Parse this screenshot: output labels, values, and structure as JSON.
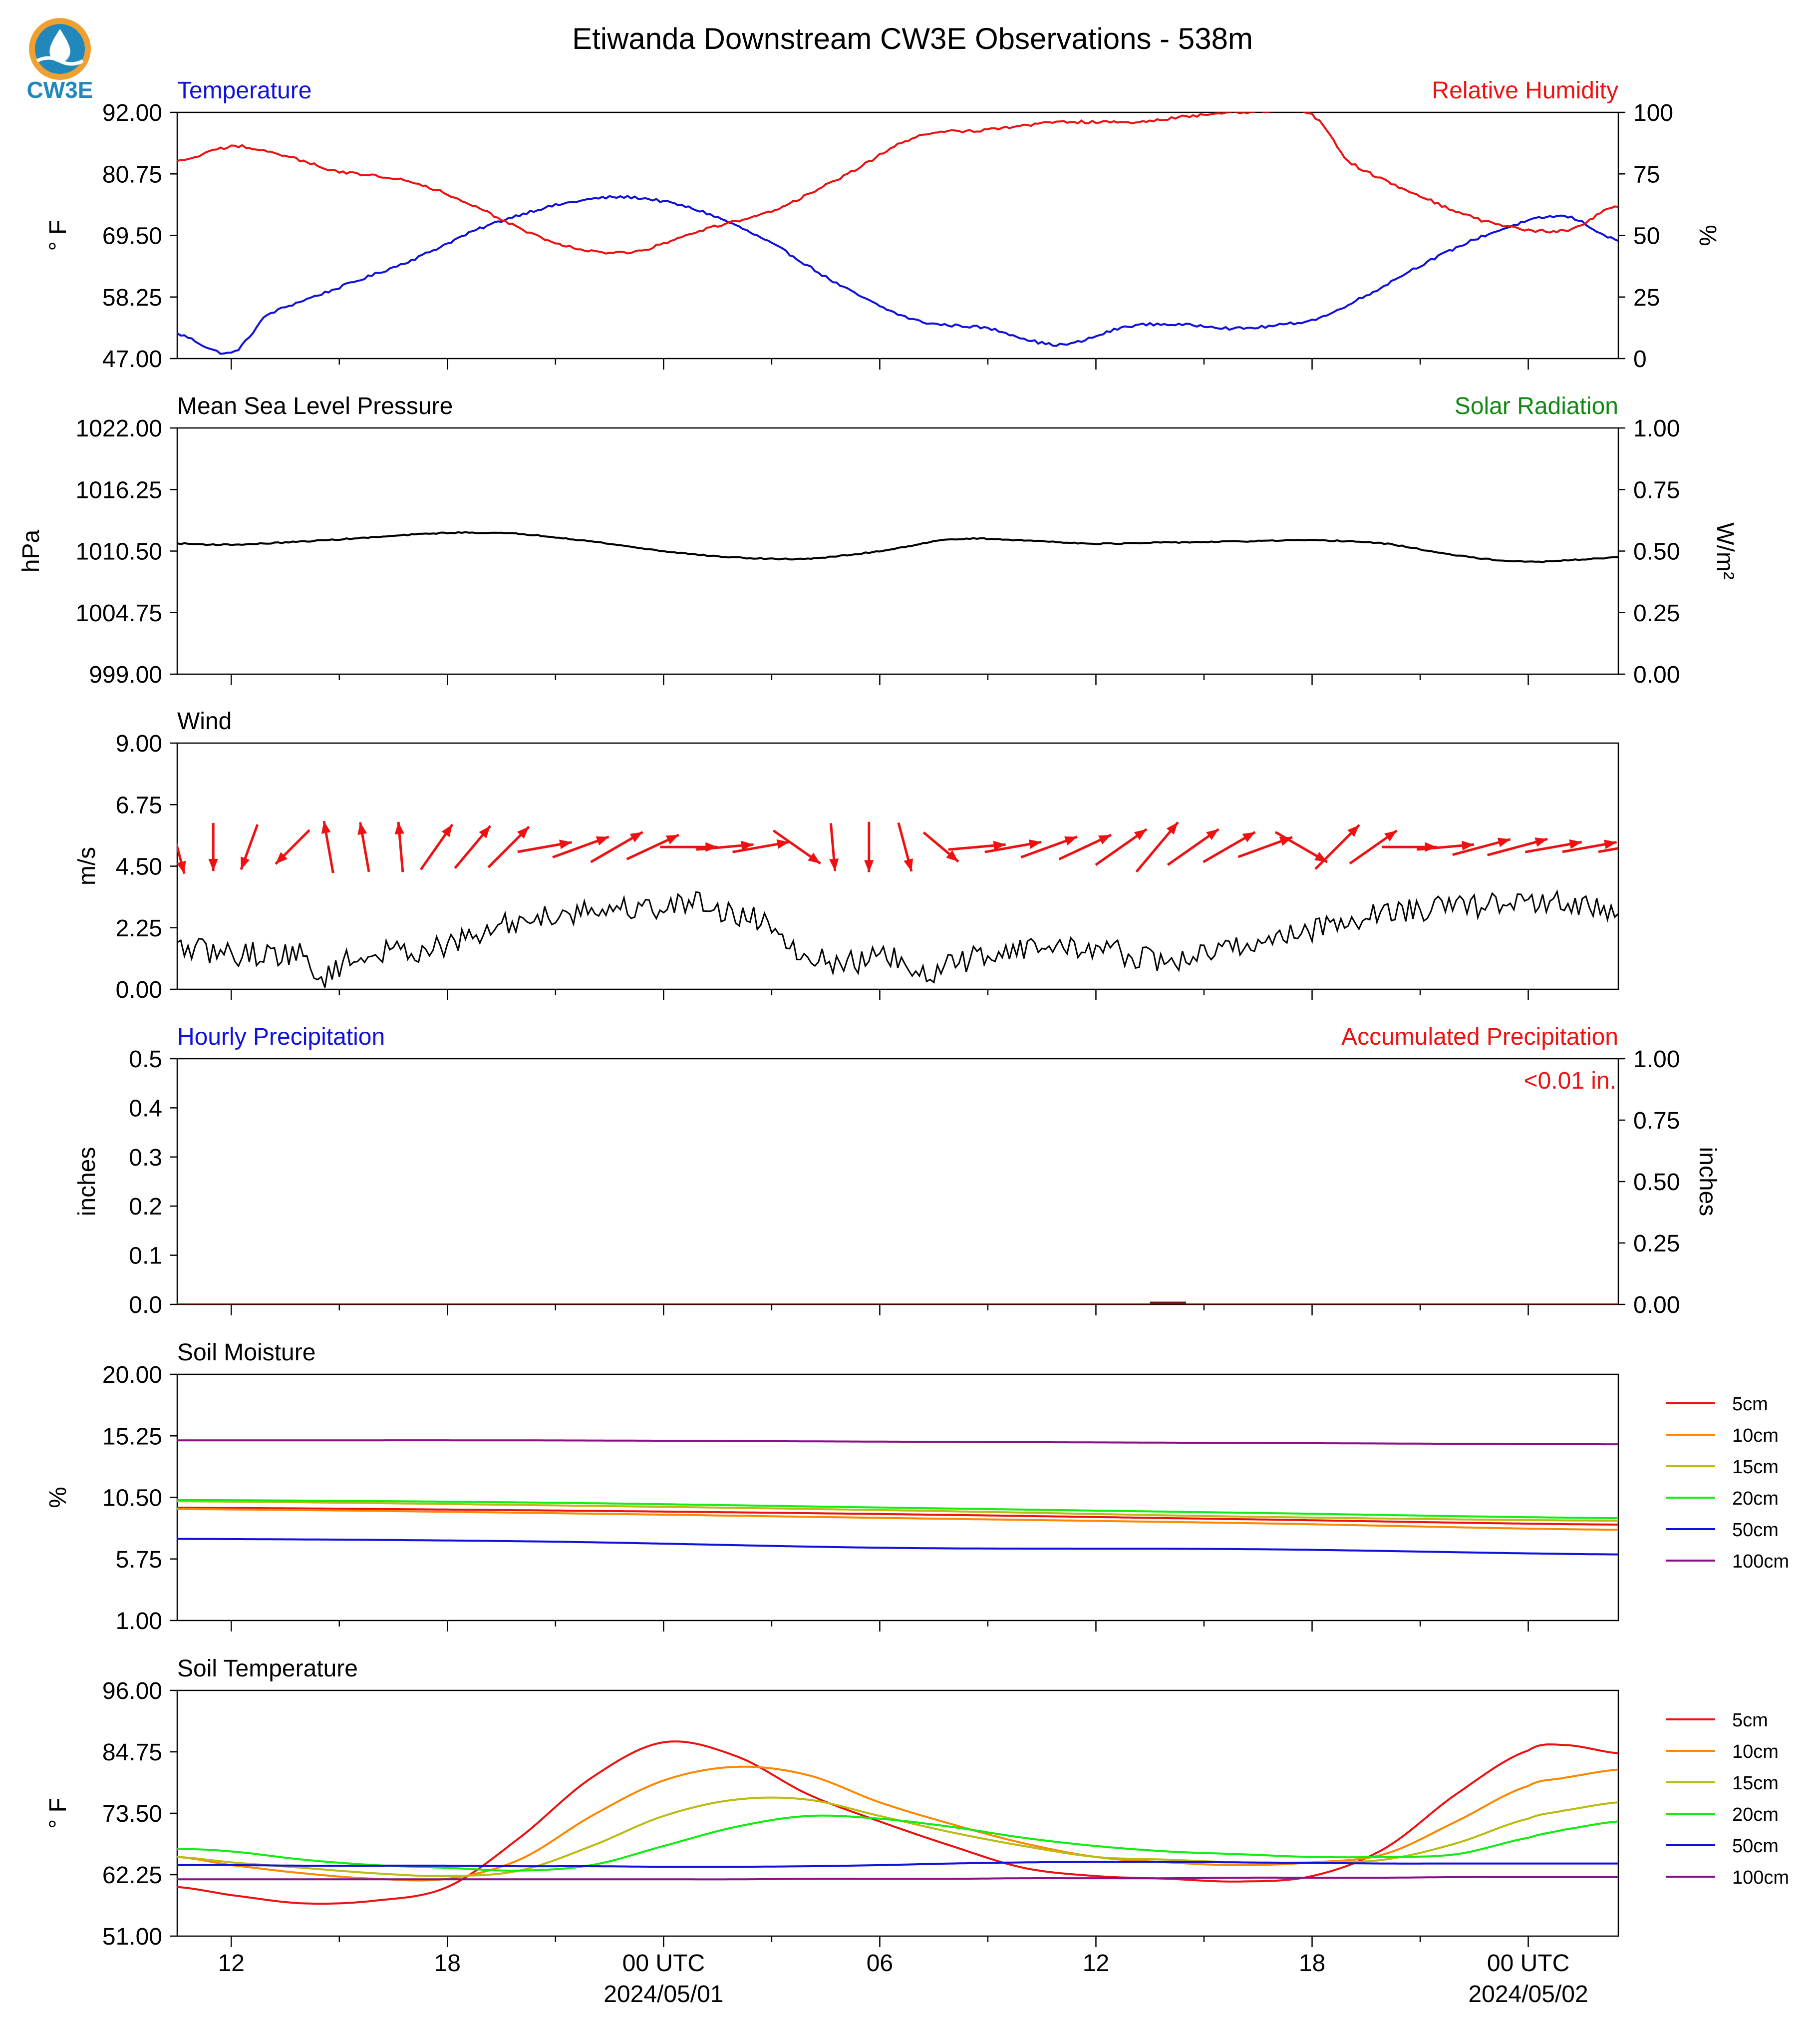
{
  "page": {
    "title": "Etiwanda Downstream CW3E Observations - 538m",
    "logo_text": "CW3E",
    "x_ticks": [
      {
        "label": "12",
        "sub": ""
      },
      {
        "label": "18",
        "sub": ""
      },
      {
        "label": "00 UTC",
        "sub": "2024/05/01"
      },
      {
        "label": "06",
        "sub": ""
      },
      {
        "label": "12",
        "sub": ""
      },
      {
        "label": "18",
        "sub": ""
      },
      {
        "label": "00 UTC",
        "sub": "2024/05/02"
      }
    ],
    "colors": {
      "blue": "#1111dd",
      "red": "#ee1111",
      "green": "#118811",
      "black": "#000000"
    }
  },
  "chart_data": [
    {
      "type": "line",
      "left_title": "Temperature",
      "right_title": "Relative Humidity",
      "ylabel": "° F",
      "ylabel_right": "%",
      "yticks": [
        "92.00",
        "80.75",
        "69.50",
        "58.25",
        "47.00"
      ],
      "yticks_right": [
        "100",
        "75",
        "50",
        "25",
        "0"
      ],
      "ylim": [
        47,
        92
      ],
      "ylim_right": [
        0,
        100
      ],
      "x_hours": [
        -1.5,
        0,
        1,
        3,
        5,
        7,
        9,
        11,
        13,
        15,
        17,
        19,
        21,
        23,
        25,
        27,
        28,
        30,
        31,
        33,
        35,
        37,
        38.5
      ],
      "series": [
        {
          "name": "Temperature",
          "color": "#1111dd",
          "axis": "left",
          "values": [
            51.5,
            48,
            55,
            60,
            65,
            71,
            75,
            76.5,
            74,
            68,
            60,
            54,
            52.5,
            49.5,
            53,
            53,
            52.5,
            54,
            57,
            64,
            70,
            73,
            68.5
          ]
        },
        {
          "name": "Relative Humidity",
          "color": "#ee1111",
          "axis": "right",
          "values": [
            80,
            86,
            84,
            76,
            72,
            60,
            47,
            43,
            52,
            60,
            74,
            90,
            93,
            96,
            96,
            99,
            100,
            99,
            80,
            66,
            55,
            52,
            62
          ]
        }
      ]
    },
    {
      "type": "line",
      "left_title": "Mean Sea Level Pressure",
      "right_title": "Solar Radiation",
      "ylabel": "hPa",
      "ylabel_right": "W/m²",
      "yticks": [
        "1022.00",
        "1016.25",
        "1010.50",
        "1004.75",
        "999.00"
      ],
      "yticks_right": [
        "1.00",
        "0.75",
        "0.50",
        "0.25",
        "0.00"
      ],
      "ylim": [
        999,
        1022
      ],
      "ylim_right": [
        0,
        1
      ],
      "x_hours": [
        -1.5,
        0,
        2,
        4,
        6,
        8,
        10,
        12,
        14,
        16,
        18,
        20,
        22,
        24,
        26,
        28,
        30,
        32,
        34,
        36,
        38.5
      ],
      "series": [
        {
          "name": "Mean Sea Level Pressure",
          "color": "#000000",
          "axis": "left",
          "values": [
            1011.2,
            1011.1,
            1011.4,
            1011.8,
            1012.2,
            1012.1,
            1011.4,
            1010.5,
            1009.9,
            1009.8,
            1010.5,
            1011.6,
            1011.5,
            1011.2,
            1011.3,
            1011.4,
            1011.5,
            1011.2,
            1010.1,
            1009.5,
            1009.9
          ]
        }
      ]
    },
    {
      "type": "line",
      "left_title": "Wind",
      "ylabel": "m/s",
      "yticks": [
        "9.00",
        "6.75",
        "4.50",
        "2.25",
        "0.00"
      ],
      "ylim": [
        0,
        9
      ],
      "x_hours": [
        -1.5,
        0,
        1,
        2,
        2.4,
        3,
        4,
        6,
        8,
        10,
        12,
        13,
        14,
        15,
        16,
        17,
        18.5,
        19,
        20,
        21,
        22,
        24,
        26,
        27,
        28,
        30,
        32,
        34,
        36,
        38.5
      ],
      "series": [
        {
          "name": "Wind Speed",
          "color": "#000000",
          "axis": "left",
          "values": [
            1.5,
            1.3,
            1.3,
            1.2,
            0.4,
            0.9,
            1.3,
            1.6,
            2.5,
            2.9,
            3.0,
            3.2,
            2.7,
            2.4,
            1.2,
            1.0,
            1.1,
            0.4,
            0.9,
            1.3,
            1.5,
            1.5,
            1.0,
            1.3,
            1.6,
            2.2,
            2.8,
            3.0,
            3.2,
            2.9
          ]
        }
      ],
      "wind_barbs": {
        "color": "#ee1111",
        "hours": [
          -1.5,
          -0.5,
          0.5,
          1.7,
          2.7,
          3.7,
          4.7,
          5.7,
          6.7,
          7.7,
          8.7,
          9.7,
          10.7,
          11.7,
          12.7,
          13.7,
          14.7,
          15.7,
          16.7,
          17.7,
          18.7,
          19.7,
          20.7,
          21.7,
          22.7,
          23.7,
          24.7,
          25.7,
          26.7,
          27.7,
          28.7,
          29.7,
          30.7,
          31.7,
          32.7,
          33.7,
          34.7,
          35.7,
          36.7,
          37.7,
          38.7
        ],
        "direction_deg": [
          345,
          0,
          20,
          45,
          170,
          170,
          175,
          215,
          220,
          225,
          260,
          250,
          240,
          245,
          270,
          265,
          260,
          305,
          355,
          0,
          345,
          310,
          265,
          260,
          250,
          245,
          235,
          220,
          235,
          240,
          250,
          300,
          225,
          235,
          270,
          265,
          255,
          255,
          260,
          260,
          260
        ],
        "speed_ms": [
          2.3,
          2.0,
          2.0,
          2.0,
          2.2,
          2.1,
          2.1,
          2.3,
          2.3,
          2.4,
          2.3,
          2.5,
          2.5,
          2.4,
          2.4,
          2.4,
          2.4,
          2.4,
          2.0,
          2.1,
          2.1,
          1.9,
          2.4,
          2.4,
          2.5,
          2.4,
          2.6,
          2.7,
          2.6,
          2.5,
          2.4,
          2.5,
          2.6,
          2.4,
          2.3,
          2.4,
          2.5,
          2.6,
          2.4,
          2.3,
          2.3
        ]
      }
    },
    {
      "type": "bar",
      "left_title": "Hourly Precipitation",
      "right_title": "Accumulated Precipitation",
      "annotation": "<0.01 in.",
      "ylabel": "inches",
      "ylabel_right": "inches",
      "yticks": [
        "0.5",
        "0.4",
        "0.3",
        "0.2",
        "0.1",
        "0.0"
      ],
      "yticks_right": [
        "1.00",
        "0.75",
        "0.50",
        "0.25",
        "0.00"
      ],
      "ylim": [
        0,
        0.5
      ],
      "ylim_right": [
        0,
        1
      ],
      "x_hours": [
        -1.5,
        38.5
      ],
      "series": [
        {
          "name": "Hourly Precipitation",
          "color": "#1111dd",
          "axis": "left",
          "values": [
            0,
            0
          ]
        },
        {
          "name": "Accumulated Precipitation",
          "color": "#ee1111",
          "axis": "right",
          "values": [
            0,
            0
          ]
        }
      ]
    },
    {
      "type": "line",
      "left_title": "Soil Moisture",
      "ylabel": "%",
      "yticks": [
        "20.00",
        "15.25",
        "10.50",
        "5.75",
        "1.00"
      ],
      "ylim": [
        1,
        20
      ],
      "x_hours": [
        -1.5,
        8.5,
        18.5,
        28.5,
        38.5
      ],
      "legend": [
        "5cm",
        "10cm",
        "15cm",
        "20cm",
        "50cm",
        "100cm"
      ],
      "series": [
        {
          "name": "5cm",
          "color": "#ee1111",
          "axis": "left",
          "values": [
            9.7,
            9.5,
            9.2,
            8.8,
            8.4
          ]
        },
        {
          "name": "10cm",
          "color": "#ff8800",
          "axis": "left",
          "values": [
            9.6,
            9.3,
            8.9,
            8.5,
            8.0
          ]
        },
        {
          "name": "15cm",
          "color": "#bbbb11",
          "axis": "left",
          "values": [
            10.2,
            9.9,
            9.5,
            9.0,
            8.7
          ]
        },
        {
          "name": "20cm",
          "color": "#11ee11",
          "axis": "left",
          "values": [
            10.3,
            10.1,
            9.7,
            9.3,
            8.9
          ]
        },
        {
          "name": "50cm",
          "color": "#1111dd",
          "axis": "left",
          "values": [
            7.3,
            7.1,
            6.6,
            6.5,
            6.1
          ]
        },
        {
          "name": "100cm",
          "color": "#881188",
          "axis": "left",
          "values": [
            14.9,
            14.9,
            14.8,
            14.7,
            14.6
          ]
        }
      ]
    },
    {
      "type": "line",
      "left_title": "Soil Temperature",
      "ylabel": "° F",
      "yticks": [
        "96.00",
        "84.75",
        "73.50",
        "62.25",
        "51.00"
      ],
      "ylim": [
        51,
        96
      ],
      "x_hours": [
        -1.5,
        0,
        2,
        4,
        6,
        8,
        10,
        12,
        14,
        16,
        18,
        20,
        22,
        24,
        26,
        28,
        30,
        32,
        34,
        36,
        37,
        38.5
      ],
      "legend": [
        "5cm",
        "10cm",
        "15cm",
        "20cm",
        "50cm",
        "100cm"
      ],
      "series": [
        {
          "name": "5cm",
          "color": "#ee1111",
          "axis": "left",
          "values": [
            60,
            58.5,
            57,
            57.5,
            60,
            69,
            80,
            86.5,
            84,
            77,
            72,
            67.5,
            63.5,
            62,
            61.5,
            61,
            62,
            67,
            77,
            85,
            86,
            84.5
          ]
        },
        {
          "name": "10cm",
          "color": "#ff8800",
          "axis": "left",
          "values": [
            65.5,
            64,
            62.5,
            61.5,
            61.5,
            65,
            73,
            79.5,
            82,
            80.5,
            75.5,
            71.5,
            68,
            65.5,
            64.5,
            64,
            64.5,
            66,
            72,
            78.5,
            80,
            81.5
          ]
        },
        {
          "name": "15cm",
          "color": "#bbbb11",
          "axis": "left",
          "values": [
            65.5,
            64.5,
            63.5,
            62.5,
            62,
            63,
            67.5,
            73,
            76,
            76,
            73,
            70,
            67.5,
            65.5,
            65,
            64.5,
            64.5,
            65,
            68,
            72.5,
            74,
            75.5
          ]
        },
        {
          "name": "20cm",
          "color": "#11ee11",
          "axis": "left",
          "values": [
            67,
            66.5,
            65,
            64,
            63.5,
            63,
            64,
            67.5,
            71,
            73,
            72.5,
            71,
            69,
            67.5,
            66.5,
            66,
            65.5,
            65.5,
            66,
            69,
            70.5,
            72
          ]
        },
        {
          "name": "50cm",
          "color": "#1111dd",
          "axis": "left",
          "values": [
            64,
            64,
            63.9,
            63.9,
            63.9,
            63.8,
            63.8,
            63.7,
            63.7,
            63.8,
            64,
            64.3,
            64.5,
            64.6,
            64.6,
            64.5,
            64.4,
            64.3,
            64.3,
            64.3,
            64.3,
            64.3
          ]
        },
        {
          "name": "100cm",
          "color": "#881188",
          "axis": "left",
          "values": [
            61.4,
            61.4,
            61.4,
            61.4,
            61.4,
            61.4,
            61.4,
            61.4,
            61.4,
            61.5,
            61.5,
            61.5,
            61.6,
            61.6,
            61.6,
            61.7,
            61.7,
            61.7,
            61.8,
            61.8,
            61.8,
            61.8
          ]
        }
      ]
    }
  ]
}
